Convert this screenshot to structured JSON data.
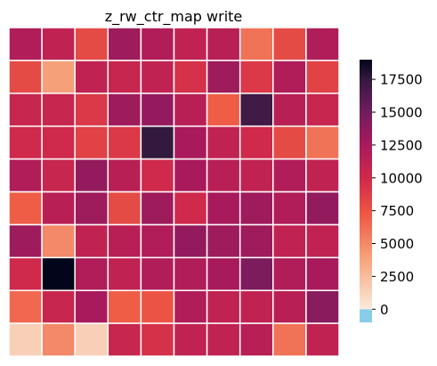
{
  "chart_data": {
    "type": "heatmap",
    "title": "z_rw_ctr_map write",
    "xlabel": "",
    "ylabel": "",
    "rows": 10,
    "cols": 10,
    "values": [
      [
        12000,
        11000,
        8000,
        13000,
        12000,
        11000,
        11500,
        6000,
        8000,
        12000
      ],
      [
        8000,
        4000,
        11000,
        10500,
        11000,
        9500,
        13000,
        9000,
        12000,
        8500
      ],
      [
        10500,
        10500,
        9000,
        13000,
        13500,
        11500,
        7000,
        17000,
        11500,
        10500
      ],
      [
        10000,
        10000,
        8500,
        9000,
        17500,
        12500,
        11000,
        10000,
        8000,
        6000
      ],
      [
        12000,
        10500,
        13500,
        11500,
        10000,
        12500,
        11500,
        11000,
        12000,
        11000
      ],
      [
        7000,
        11500,
        13000,
        8000,
        13000,
        10000,
        12500,
        13000,
        12000,
        13500
      ],
      [
        13000,
        5000,
        11000,
        11500,
        12000,
        13500,
        13000,
        13000,
        11000,
        11000
      ],
      [
        10000,
        19000,
        12000,
        11000,
        12000,
        12000,
        12500,
        14500,
        12000,
        12500
      ],
      [
        6500,
        10500,
        12500,
        7000,
        7500,
        12000,
        11000,
        11000,
        11500,
        14000
      ],
      [
        1500,
        5000,
        1500,
        10500,
        9500,
        11000,
        11000,
        11500,
        6000,
        11000
      ]
    ],
    "colorbar": {
      "min": -1000,
      "max": 19000,
      "ticks": [
        0,
        2500,
        5000,
        7500,
        10000,
        12500,
        15000,
        17500
      ],
      "zero_color": "#87cdea",
      "colormap": "rocket_r",
      "colormap_stops": [
        [
          0.0,
          "#faebdd"
        ],
        [
          0.2,
          "#f6a47c"
        ],
        [
          0.38,
          "#ee5843"
        ],
        [
          0.52,
          "#d12a4a"
        ],
        [
          0.66,
          "#a81a5c"
        ],
        [
          0.8,
          "#6d1d5e"
        ],
        [
          0.92,
          "#35193e"
        ],
        [
          1.0,
          "#03051a"
        ]
      ]
    },
    "grid_line_color": "#ffffff"
  }
}
